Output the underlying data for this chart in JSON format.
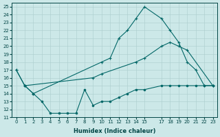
{
  "xlabel": "Humidex (Indice chaleur)",
  "bg_color": "#cce8e8",
  "line_color": "#006666",
  "ylim": [
    11,
    25.5
  ],
  "xlim": [
    -0.5,
    23.5
  ],
  "yticks": [
    11,
    12,
    13,
    14,
    15,
    16,
    17,
    18,
    19,
    20,
    21,
    22,
    23,
    24,
    25
  ],
  "xticks": [
    0,
    1,
    2,
    3,
    4,
    5,
    6,
    7,
    8,
    9,
    10,
    11,
    12,
    13,
    14,
    15,
    17,
    18,
    19,
    20,
    21,
    22,
    23
  ],
  "line1_x": [
    0,
    1,
    2,
    10,
    11,
    12,
    13,
    14,
    15,
    17,
    18,
    19,
    20,
    21,
    22,
    23
  ],
  "line1_y": [
    17,
    15,
    14,
    18,
    18.5,
    21,
    22,
    23.5,
    25,
    23.5,
    22,
    20.5,
    18,
    17,
    15,
    15
  ],
  "line2_x": [
    0,
    1,
    9,
    10,
    14,
    15,
    17,
    18,
    19,
    20,
    23
  ],
  "line2_y": [
    17,
    15,
    16,
    16.5,
    18,
    18.5,
    20,
    20.5,
    20,
    19.5,
    15
  ],
  "line3_x": [
    1,
    2,
    3,
    4,
    5,
    6,
    7,
    8,
    9,
    10,
    11,
    12,
    13,
    14,
    15,
    17,
    18,
    19,
    20,
    21,
    22,
    23
  ],
  "line3_y": [
    15,
    14,
    13,
    11.5,
    11.5,
    11.5,
    11.5,
    14.5,
    12.5,
    13,
    13,
    13.5,
    14,
    14.5,
    14.5,
    15,
    15,
    15,
    15,
    15,
    15,
    15
  ]
}
